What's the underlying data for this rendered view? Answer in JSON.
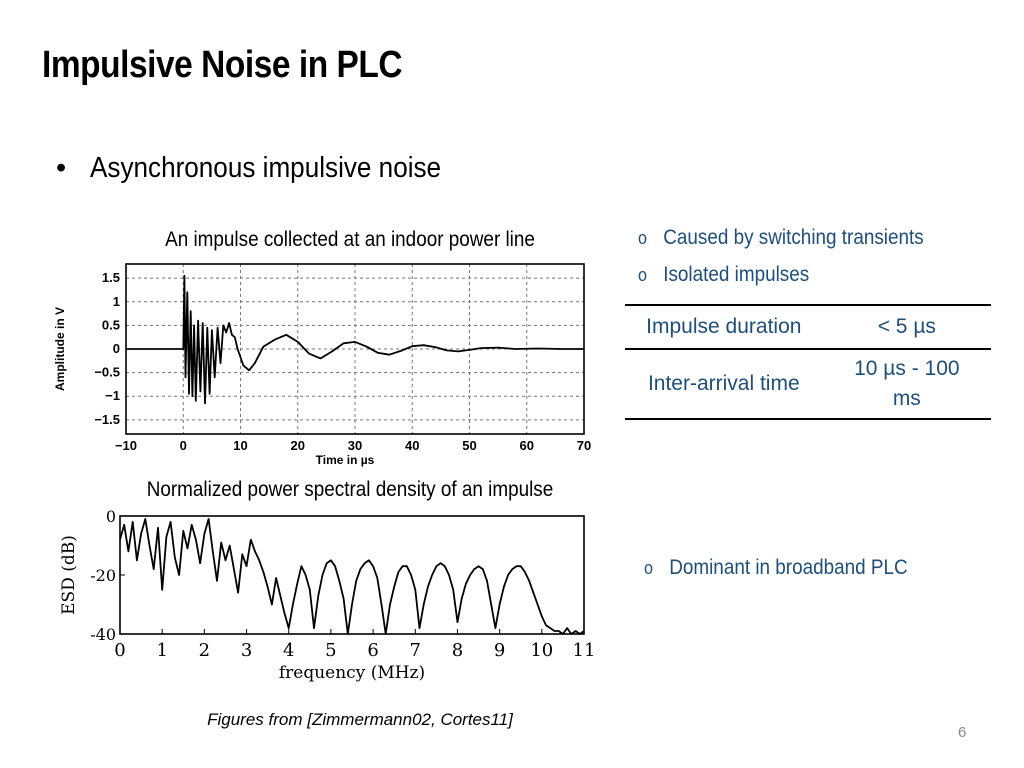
{
  "slide": {
    "title": "Impulsive Noise in PLC",
    "bullet": "Asynchronous impulsive noise",
    "bullet_symbol": "•",
    "figure_top_caption": "An impulse collected at an indoor power line",
    "figure_bottom_caption": "Normalized power spectral density of an impulse",
    "sub_symbol": "o",
    "sub_items_top": [
      "Caused by switching transients",
      "Isolated impulses"
    ],
    "sub_items_bottom": [
      "Dominant in broadband PLC"
    ],
    "table": [
      {
        "property": "Impulse duration",
        "value": "< 5 µs"
      },
      {
        "property": "Inter-arrival time",
        "value": "10 µs - 100 ms"
      }
    ],
    "footer": "Figures from [Zimmermann02, Cortes11]",
    "page_number": "6",
    "accent_color": "#1f4e79"
  },
  "chart_data": [
    {
      "type": "line",
      "title": "",
      "xlabel": "Time in µs",
      "ylabel": "Amplitude in V",
      "xlim": [
        -10,
        70
      ],
      "ylim": [
        -1.8,
        1.8
      ],
      "x_ticks": [
        "−10",
        "0",
        "10",
        "20",
        "30",
        "40",
        "50",
        "60",
        "70"
      ],
      "y_ticks": [
        "1.5",
        "1",
        "0.5",
        "0",
        "−0.5",
        "−1",
        "−1.5"
      ],
      "grid": true,
      "series": [
        {
          "x": [
            -10,
            0,
            0.2,
            0.4,
            0.7,
            1.0,
            1.3,
            1.6,
            1.9,
            2.2,
            2.6,
            3.0,
            3.4,
            3.8,
            4.2,
            4.6,
            5.0,
            5.5,
            6.0,
            6.5,
            7.0,
            7.5,
            8.0,
            8.5,
            9.0,
            9.5,
            10.5,
            11.5,
            12.5,
            14,
            16,
            18,
            20,
            22,
            24,
            26,
            28,
            30,
            32,
            34,
            36,
            38,
            40,
            42,
            44,
            46,
            48,
            50,
            52,
            55,
            58,
            62,
            66,
            70
          ],
          "y": [
            0,
            0,
            1.55,
            -0.6,
            1.2,
            -0.95,
            0.8,
            -1.0,
            0.5,
            -1.1,
            0.6,
            -0.9,
            0.55,
            -1.15,
            0.45,
            -0.95,
            0.4,
            -0.6,
            0.45,
            -0.3,
            0.5,
            0.35,
            0.55,
            0.3,
            0.25,
            0.0,
            -0.35,
            -0.45,
            -0.3,
            0.05,
            0.2,
            0.3,
            0.15,
            -0.1,
            -0.2,
            -0.05,
            0.12,
            0.15,
            0.05,
            -0.08,
            -0.12,
            -0.04,
            0.06,
            0.08,
            0.04,
            -0.03,
            -0.05,
            -0.02,
            0.02,
            0.03,
            0.0,
            0.01,
            0.0,
            0.0
          ]
        }
      ]
    },
    {
      "type": "line",
      "title": "",
      "xlabel": "frequency (MHz)",
      "ylabel": "ESD (dB)",
      "xlim": [
        0,
        11
      ],
      "ylim": [
        -40,
        0
      ],
      "x_ticks": [
        "0",
        "1",
        "2",
        "3",
        "4",
        "5",
        "6",
        "7",
        "8",
        "9",
        "10",
        "11"
      ],
      "y_ticks": [
        "0",
        "-20",
        "-40"
      ],
      "grid": false,
      "series": [
        {
          "x": [
            0.0,
            0.1,
            0.2,
            0.3,
            0.4,
            0.5,
            0.6,
            0.7,
            0.8,
            0.9,
            1.0,
            1.1,
            1.2,
            1.3,
            1.4,
            1.5,
            1.6,
            1.7,
            1.8,
            1.9,
            2.0,
            2.1,
            2.2,
            2.3,
            2.4,
            2.5,
            2.6,
            2.7,
            2.8,
            2.9,
            3.0,
            3.1,
            3.2,
            3.3,
            3.4,
            3.5,
            3.6,
            3.7,
            3.8,
            3.9,
            4.0,
            4.1,
            4.2,
            4.3,
            4.4,
            4.5,
            4.6,
            4.7,
            4.8,
            4.9,
            5.0,
            5.1,
            5.2,
            5.3,
            5.4,
            5.5,
            5.6,
            5.7,
            5.8,
            5.9,
            6.0,
            6.1,
            6.2,
            6.3,
            6.4,
            6.5,
            6.6,
            6.7,
            6.8,
            6.9,
            7.0,
            7.1,
            7.2,
            7.3,
            7.4,
            7.5,
            7.6,
            7.7,
            7.8,
            7.9,
            8.0,
            8.1,
            8.2,
            8.3,
            8.4,
            8.5,
            8.6,
            8.7,
            8.8,
            8.9,
            9.0,
            9.1,
            9.2,
            9.3,
            9.4,
            9.5,
            9.6,
            9.7,
            9.8,
            9.9,
            10.0,
            10.1,
            10.2,
            10.3,
            10.4,
            10.5,
            10.6,
            10.7,
            10.8,
            10.9,
            11.0
          ],
          "y": [
            -8,
            -3,
            -12,
            -2,
            -15,
            -6,
            -1,
            -10,
            -18,
            -4,
            -25,
            -7,
            -2,
            -14,
            -20,
            -5,
            -11,
            -3,
            -8,
            -16,
            -6,
            -1,
            -12,
            -22,
            -9,
            -15,
            -10,
            -18,
            -26,
            -13,
            -17,
            -8,
            -12,
            -15,
            -19,
            -24,
            -30,
            -21,
            -27,
            -33,
            -38,
            -30,
            -23,
            -17,
            -20,
            -25,
            -38,
            -27,
            -20,
            -16,
            -15,
            -17,
            -22,
            -28,
            -40,
            -30,
            -22,
            -18,
            -16,
            -15,
            -17,
            -21,
            -30,
            -40,
            -30,
            -24,
            -19,
            -17,
            -17,
            -20,
            -25,
            -38,
            -30,
            -24,
            -20,
            -17,
            -16,
            -17,
            -20,
            -25,
            -36,
            -28,
            -23,
            -20,
            -18,
            -17,
            -18,
            -22,
            -30,
            -38,
            -30,
            -24,
            -20,
            -18,
            -17,
            -17,
            -19,
            -22,
            -26,
            -30,
            -34,
            -37,
            -38,
            -39,
            -39,
            -40,
            -38,
            -40,
            -39,
            -40,
            -39
          ]
        }
      ]
    }
  ]
}
